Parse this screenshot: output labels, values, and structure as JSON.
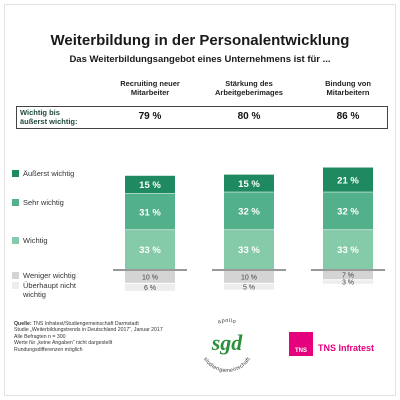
{
  "title": "Weiterbildung in der Personalentwicklung",
  "subtitle": "Das Weiterbildungsangebot eines Unternehmens ist für ...",
  "summary": {
    "label_line1": "Wichtig bis",
    "label_line2": "äußerst wichtig:",
    "values": [
      "79 %",
      "80 %",
      "86 %"
    ]
  },
  "colors": {
    "aeusserst": "#1f8a5f",
    "sehr": "#52b08a",
    "wichtig": "#86cba9",
    "weniger": "#d4d4d4",
    "ueberhaupt": "#ededed",
    "tns": "#e5007d"
  },
  "chart_data": {
    "type": "bar",
    "stacked": true,
    "categories": [
      [
        "Recruiting neuer",
        "Mitarbeiter"
      ],
      [
        "Stärkung des",
        "Arbeitgeberimages"
      ],
      [
        "Bindung von",
        "Mitarbeitern"
      ]
    ],
    "series": [
      {
        "name": "Äußerst wichtig",
        "values": [
          15,
          15,
          21
        ],
        "labels": [
          "15 %",
          "15 %",
          "21 %"
        ]
      },
      {
        "name": "Sehr wichtig",
        "values": [
          31,
          32,
          32
        ],
        "labels": [
          "31 %",
          "32 %",
          "32 %"
        ]
      },
      {
        "name": "Wichtig",
        "values": [
          33,
          33,
          33
        ],
        "labels": [
          "33 %",
          "33 %",
          "33 %"
        ]
      },
      {
        "name": "Weniger wichtig",
        "values": [
          10,
          10,
          7
        ],
        "labels": [
          "10 %",
          "10 %",
          "7 %"
        ]
      },
      {
        "name": [
          "Überhaupt nicht",
          "wichtig"
        ],
        "values": [
          6,
          5,
          3
        ],
        "labels": [
          "6 %",
          "5 %",
          "3 %"
        ]
      }
    ]
  },
  "source": {
    "label": "Quelle:",
    "line1": "TNS Infratest/Studiengemeinschaft Darmstadt",
    "line2": "Studie „Weiterbildungstrends in Deutschland 2017“, Januar 2017",
    "line3": "Alle Befragten n = 300",
    "line4": "Werte für „keine Angaben“ nicht dargestellt",
    "line5": "Rundungsdifferenzen möglich"
  },
  "logos": {
    "sgd": "sgd",
    "sgd_ring_top": "apollo",
    "sgd_ring_bottom": "studiengemeinschaft",
    "tns_square": "TNS",
    "tns_text": "TNS Infratest"
  }
}
